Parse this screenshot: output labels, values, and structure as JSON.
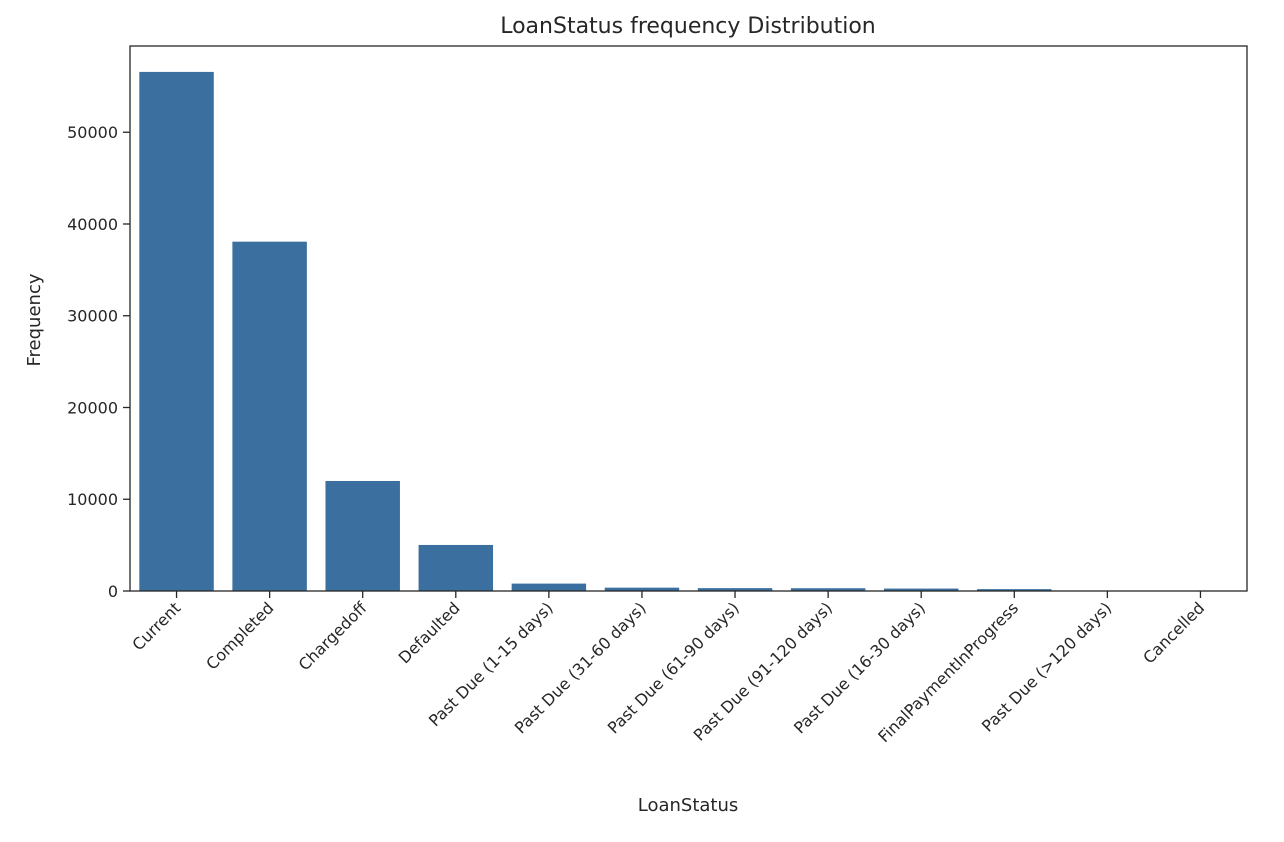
{
  "chart_data": {
    "type": "bar",
    "title": "LoanStatus frequency Distribution",
    "xlabel": "LoanStatus",
    "ylabel": "Frequency",
    "categories": [
      "Current",
      "Completed",
      "Chargedoff",
      "Defaulted",
      "Past Due (1-15 days)",
      "Past Due (31-60 days)",
      "Past Due (61-90 days)",
      "Past Due (91-120 days)",
      "Past Due (16-30 days)",
      "FinalPaymentInProgress",
      "Past Due (>120 days)",
      "Cancelled"
    ],
    "values": [
      56576,
      38074,
      11992,
      5018,
      806,
      363,
      313,
      304,
      265,
      205,
      16,
      5
    ],
    "ylim": [
      0,
      59400
    ],
    "yticks": [
      0,
      10000,
      20000,
      30000,
      40000,
      50000
    ],
    "ytick_labels": [
      "0",
      "10000",
      "20000",
      "30000",
      "40000",
      "50000"
    ],
    "grid": false,
    "legend": "none",
    "bar_color": "#3a6f9f"
  }
}
